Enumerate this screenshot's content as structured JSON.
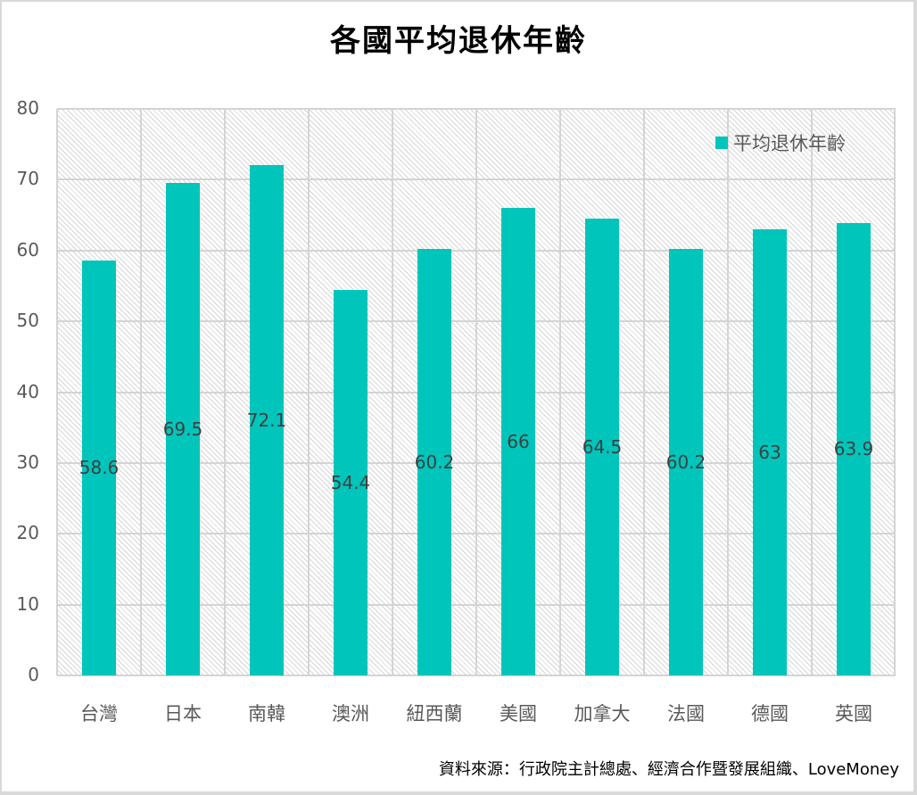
{
  "chart_data": {
    "type": "bar",
    "title": "各國平均退休年齡",
    "xlabel": "",
    "ylabel": "",
    "ylim": [
      0,
      80
    ],
    "yticks": [
      0,
      10,
      20,
      30,
      40,
      50,
      60,
      70,
      80
    ],
    "grid": true,
    "legend_position": "top-right",
    "categories": [
      "台灣",
      "日本",
      "南韓",
      "澳洲",
      "紐西蘭",
      "美國",
      "加拿大",
      "法國",
      "德國",
      "英國"
    ],
    "series": [
      {
        "name": "平均退休年齡",
        "color": "#00c5bb",
        "values": [
          58.6,
          69.5,
          72.1,
          54.4,
          60.2,
          66,
          64.5,
          60.2,
          63,
          63.9
        ]
      }
    ],
    "data_labels": [
      "58.6",
      "69.5",
      "72.1",
      "54.4",
      "60.2",
      "66",
      "64.5",
      "60.2",
      "63",
      "63.9"
    ],
    "annotations": [
      "資料來源：行政院主計總處、經濟合作暨發展組織、LoveMoney"
    ]
  },
  "title": "各國平均退休年齡",
  "legend": {
    "label": "平均退休年齡",
    "color": "#00c5bb"
  },
  "source": "資料來源：行政院主計總處、經濟合作暨發展組織、LoveMoney"
}
